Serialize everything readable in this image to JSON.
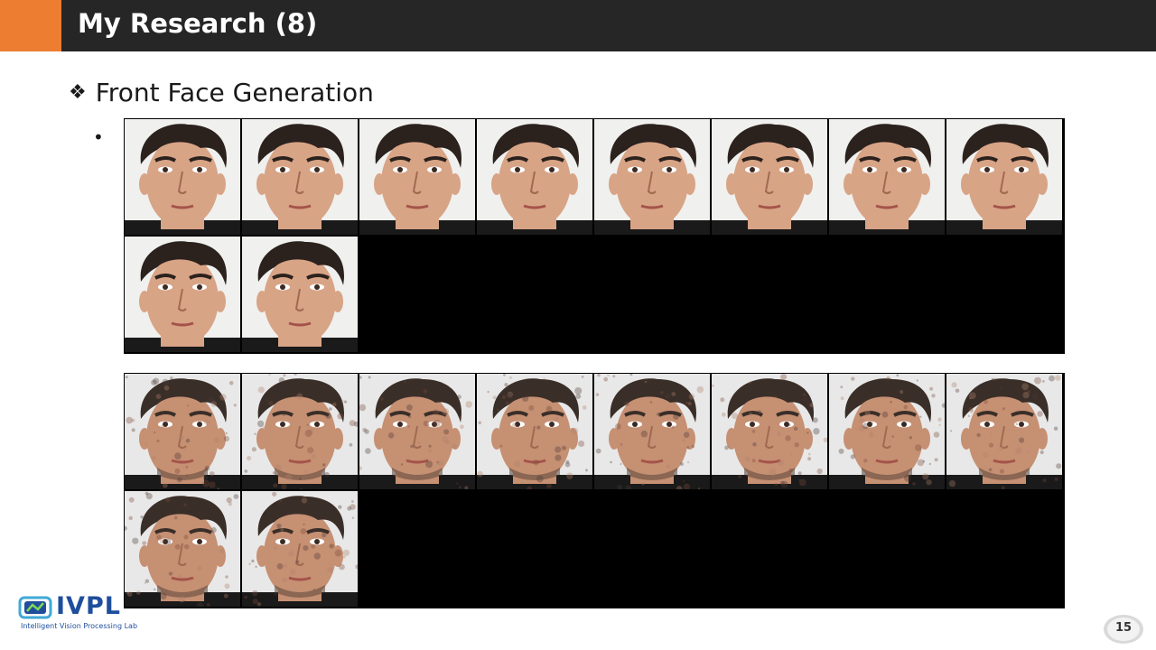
{
  "header": {
    "title": "My Research (8)",
    "accent_color": "#ed7d31",
    "bar_color": "#262626"
  },
  "content": {
    "heading_icon": "diamond-bullet-icon",
    "heading": "Front Face Generation",
    "bullet_text": "•"
  },
  "figures": [
    {
      "name": "ground-truth-front-faces",
      "image_count": 10,
      "style": "clean"
    },
    {
      "name": "generated-front-faces",
      "image_count": 10,
      "style": "noisy"
    }
  ],
  "footer": {
    "logo_text": "IVPL",
    "logo_subtitle": "Intelligent Vision Processing Lab",
    "page_number": "15"
  }
}
